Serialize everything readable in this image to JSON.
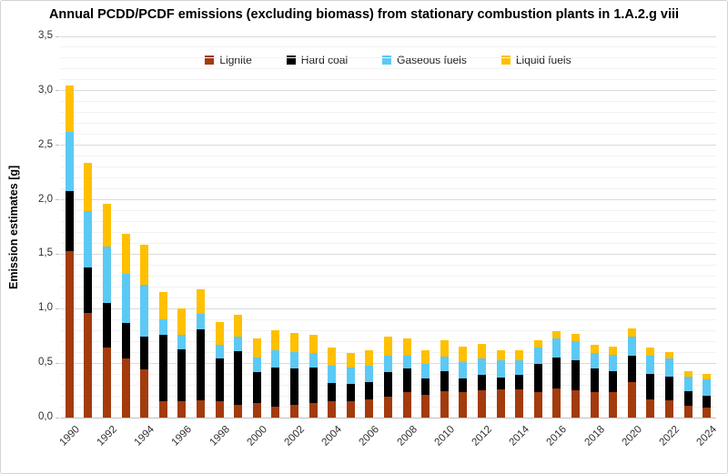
{
  "chart_data": {
    "type": "bar",
    "stacked": true,
    "title": "Annual PCDD/PCDF emissions (excluding biomass) from stationary combustion plants in 1.A.2.g viii",
    "ylabel": "Emission estimates [g]",
    "xlabel": "",
    "ylim": [
      0,
      3.5
    ],
    "y_major_step": 0.5,
    "y_minor_step": 0.1,
    "grid": "major+minor",
    "legend_position": "top",
    "decimal_separator": ",",
    "y_tick_labels": [
      "0,0",
      "0,5",
      "1,0",
      "1,5",
      "2,0",
      "2,5",
      "3,0",
      "3,5"
    ],
    "x_tick_labels": [
      "1990",
      "1992",
      "1994",
      "1996",
      "1998",
      "2000",
      "2002",
      "2004",
      "2006",
      "2008",
      "2010",
      "2012",
      "2014",
      "2016",
      "2018",
      "2020",
      "2022",
      "2024"
    ],
    "categories": [
      1990,
      1991,
      1992,
      1993,
      1994,
      1995,
      1996,
      1997,
      1998,
      1999,
      2000,
      2001,
      2002,
      2003,
      2004,
      2005,
      2006,
      2007,
      2008,
      2009,
      2010,
      2011,
      2012,
      2013,
      2014,
      2015,
      2016,
      2017,
      2018,
      2019,
      2020,
      2021,
      2022,
      2023,
      2024
    ],
    "series": [
      {
        "name": "Lignite",
        "color": "#a33b0d",
        "values": [
          1.53,
          0.96,
          0.64,
          0.54,
          0.44,
          0.15,
          0.15,
          0.16,
          0.15,
          0.12,
          0.13,
          0.1,
          0.12,
          0.13,
          0.15,
          0.15,
          0.17,
          0.19,
          0.23,
          0.21,
          0.24,
          0.23,
          0.25,
          0.26,
          0.26,
          0.23,
          0.27,
          0.25,
          0.23,
          0.23,
          0.33,
          0.17,
          0.16,
          0.11,
          0.09
        ]
      },
      {
        "name": "Hard coal",
        "color": "#000000",
        "values": [
          0.55,
          0.42,
          0.41,
          0.33,
          0.3,
          0.61,
          0.48,
          0.65,
          0.39,
          0.49,
          0.29,
          0.36,
          0.33,
          0.33,
          0.17,
          0.16,
          0.16,
          0.23,
          0.22,
          0.15,
          0.19,
          0.13,
          0.14,
          0.11,
          0.13,
          0.26,
          0.28,
          0.28,
          0.22,
          0.2,
          0.24,
          0.23,
          0.22,
          0.13,
          0.11
        ]
      },
      {
        "name": "Gaseous fuels",
        "color": "#5cc9f5",
        "values": [
          0.54,
          0.52,
          0.52,
          0.45,
          0.48,
          0.14,
          0.13,
          0.14,
          0.13,
          0.13,
          0.13,
          0.16,
          0.15,
          0.13,
          0.16,
          0.15,
          0.15,
          0.15,
          0.12,
          0.13,
          0.13,
          0.15,
          0.15,
          0.16,
          0.14,
          0.15,
          0.18,
          0.17,
          0.14,
          0.15,
          0.17,
          0.17,
          0.16,
          0.14,
          0.15
        ]
      },
      {
        "name": "Liquid fuels",
        "color": "#ffc000",
        "values": [
          0.43,
          0.44,
          0.39,
          0.37,
          0.37,
          0.25,
          0.24,
          0.23,
          0.21,
          0.2,
          0.18,
          0.18,
          0.18,
          0.17,
          0.16,
          0.13,
          0.14,
          0.17,
          0.16,
          0.13,
          0.15,
          0.14,
          0.14,
          0.09,
          0.09,
          0.07,
          0.06,
          0.07,
          0.08,
          0.07,
          0.08,
          0.07,
          0.06,
          0.05,
          0.05
        ]
      }
    ]
  },
  "style_colors": {
    "major_gridline": "#dadada",
    "minor_gridline": "#f2f2f2",
    "axis_line": "#bfbfbf",
    "tick_text": "#303030",
    "background": "#ffffff"
  }
}
